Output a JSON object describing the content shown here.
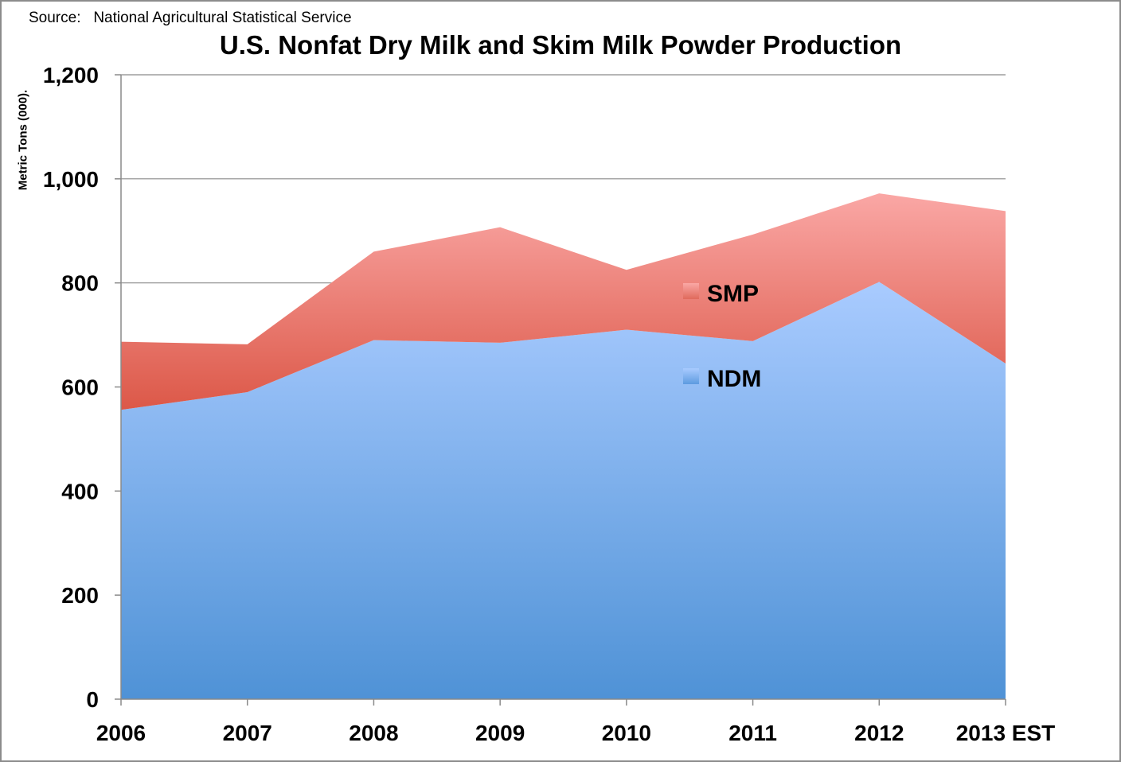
{
  "source_text": "Source:   National Agricultural Statistical Service",
  "chart_data": {
    "type": "area",
    "stacked": true,
    "title": "U.S. Nonfat Dry Milk and Skim Milk Powder Production",
    "ylabel": "Metric Tons (000).",
    "xlabel": "",
    "categories": [
      "2006",
      "2007",
      "2008",
      "2009",
      "2010",
      "2011",
      "2012",
      "2013 EST"
    ],
    "ylim": [
      0,
      1200
    ],
    "yticks": [
      0,
      200,
      400,
      600,
      800,
      1000,
      1200
    ],
    "ytick_labels": [
      "0",
      "200",
      "400",
      "600",
      "800",
      "1,000",
      "1,200"
    ],
    "grid": true,
    "series": [
      {
        "name": "NDM",
        "values": [
          556,
          590,
          690,
          685,
          710,
          688,
          802,
          645
        ],
        "color_top": "#a9cbff",
        "color_bottom": "#4f92d6",
        "legend_swatch": "#5d9be0"
      },
      {
        "name": "SMP",
        "values": [
          131,
          92,
          170,
          222,
          115,
          205,
          170,
          293
        ],
        "color_top": "#faa7a5",
        "color_bottom": "#dc5848",
        "legend_swatch": "#e06a5c"
      }
    ],
    "legend_position": "inside-center"
  }
}
